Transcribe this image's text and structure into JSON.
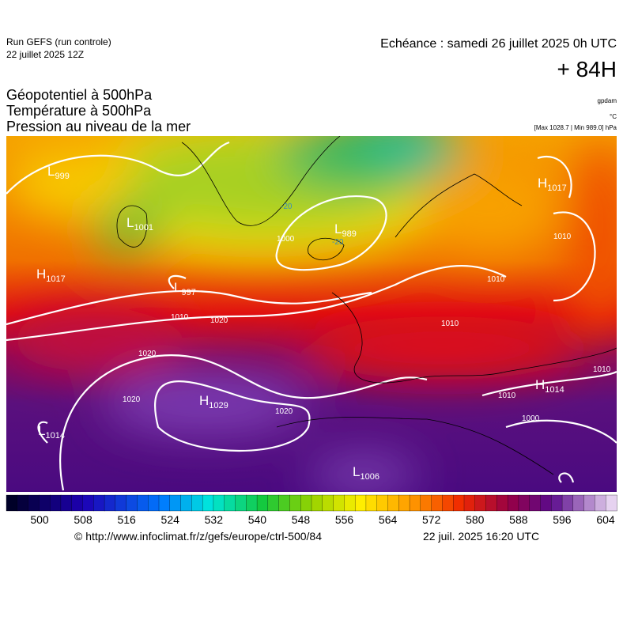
{
  "header": {
    "run": "Run GEFS (run controle)",
    "run_date": "22 juillet 2025 12Z",
    "valid": "Echéance : samedi 26 juillet 2025 0h UTC",
    "lead": "+ 84H",
    "fields": [
      "Géopotentiel à 500hPa",
      "Température à 500hPa",
      "Pression au niveau de la mer"
    ],
    "unit_geopotential": "gpdam",
    "unit_temperature": "°C",
    "pressure_range": "[Max 1028.7 | Min 989.0] hPa"
  },
  "map": {
    "systems": [
      {
        "letter": "L",
        "value": 999
      },
      {
        "letter": "L",
        "value": 1001
      },
      {
        "letter": "H",
        "value": 1017
      },
      {
        "letter": "L",
        "value": 997
      },
      {
        "letter": "L",
        "value": 989
      },
      {
        "letter": "H",
        "value": 1017
      },
      {
        "letter": "H",
        "value": 1029
      },
      {
        "letter": "L",
        "value": 1014
      },
      {
        "letter": "H",
        "value": 1014
      },
      {
        "letter": "L",
        "value": 1006
      }
    ],
    "isobar_labels": [
      1000,
      1010,
      1020,
      1020,
      1020,
      1020,
      1010,
      1010,
      1010,
      1010,
      1000,
      1010
    ],
    "temperature_labels": [
      -20,
      -20
    ]
  },
  "colorbar": {
    "ticks": [
      500,
      508,
      516,
      524,
      532,
      540,
      548,
      556,
      564,
      572,
      580,
      588,
      596,
      604
    ]
  },
  "footer": {
    "url": "© http://www.infoclimat.fr/z/gefs/europe/ctrl-500/84",
    "generated": "22 juil. 2025 16:20 UTC"
  }
}
